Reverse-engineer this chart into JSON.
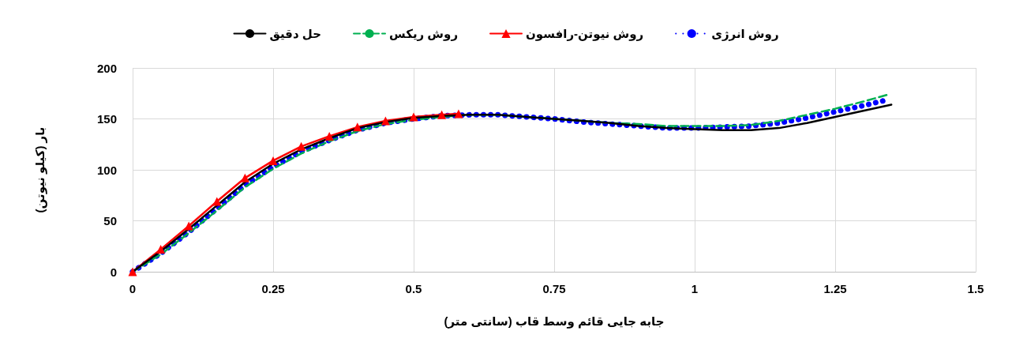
{
  "chart_data": {
    "type": "line",
    "xlabel": "جابه جایی قائم وسط قاب (سانتی متر)",
    "ylabel": "بار (کیلو نیوتن)",
    "xlim": [
      0,
      1.5
    ],
    "xticks": [
      0,
      0.25,
      0.5,
      0.75,
      1,
      1.25,
      1.5
    ],
    "ylim": [
      0,
      200
    ],
    "yticks": [
      0,
      50,
      100,
      150,
      200
    ],
    "grid": true,
    "legend": "top",
    "series": [
      {
        "name": "روش انرژی",
        "color": "#0000ff",
        "line_style": "dotted",
        "marker": "none",
        "x": [
          0,
          0.05,
          0.1,
          0.15,
          0.2,
          0.25,
          0.3,
          0.35,
          0.4,
          0.45,
          0.5,
          0.55,
          0.6,
          0.65,
          0.7,
          0.75,
          0.8,
          0.85,
          0.9,
          0.95,
          1.0,
          1.05,
          1.1,
          1.15,
          1.2,
          1.25,
          1.3,
          1.345
        ],
        "values": [
          0,
          18,
          39,
          62,
          85,
          103,
          118,
          129,
          139,
          146,
          150,
          153,
          154,
          154,
          152,
          150,
          147,
          145,
          143,
          141,
          141,
          142,
          143,
          146,
          151,
          157,
          163,
          169
        ]
      },
      {
        "name": "روش نیوتن-رافسون",
        "color": "#ff0000",
        "line_style": "solid",
        "marker": "triangle",
        "x": [
          0,
          0.05,
          0.1,
          0.15,
          0.2,
          0.25,
          0.3,
          0.35,
          0.4,
          0.45,
          0.5,
          0.55,
          0.58
        ],
        "values": [
          0,
          22,
          45,
          69,
          92,
          109,
          123,
          133,
          142,
          148,
          152,
          154,
          155
        ]
      },
      {
        "name": "روش ریکس",
        "color": "#00b050",
        "line_style": "dashed",
        "marker": "none",
        "x": [
          0,
          0.05,
          0.1,
          0.15,
          0.2,
          0.25,
          0.3,
          0.35,
          0.4,
          0.45,
          0.5,
          0.55,
          0.6,
          0.65,
          0.7,
          0.75,
          0.8,
          0.85,
          0.9,
          0.95,
          1.0,
          1.05,
          1.1,
          1.15,
          1.2,
          1.25,
          1.3,
          1.345
        ],
        "values": [
          0,
          17,
          38,
          60,
          83,
          101,
          116,
          128,
          138,
          145,
          149,
          152,
          154,
          154,
          152,
          150,
          148,
          146,
          145,
          143,
          143,
          143,
          144,
          148,
          154,
          160,
          167,
          174
        ]
      },
      {
        "name": "حل دقیق",
        "color": "#000000",
        "line_style": "solid",
        "marker": "none",
        "x": [
          0,
          0.05,
          0.1,
          0.15,
          0.2,
          0.25,
          0.3,
          0.35,
          0.4,
          0.45,
          0.5,
          0.55,
          0.6,
          0.65,
          0.7,
          0.75,
          0.8,
          0.85,
          0.9,
          0.95,
          1.0,
          1.05,
          1.1,
          1.15,
          1.2,
          1.25,
          1.3,
          1.35
        ],
        "values": [
          0,
          20,
          42,
          65,
          88,
          106,
          120,
          131,
          141,
          147,
          151,
          153,
          154,
          154,
          152,
          150,
          148,
          146,
          143,
          141,
          140,
          139,
          139,
          141,
          146,
          152,
          158,
          164
        ]
      }
    ]
  }
}
